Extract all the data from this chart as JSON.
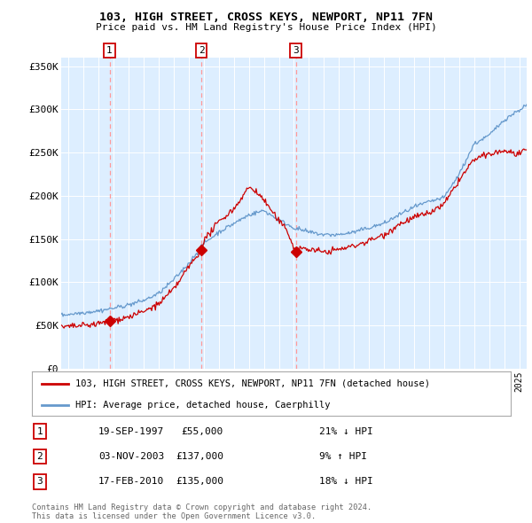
{
  "title1": "103, HIGH STREET, CROSS KEYS, NEWPORT, NP11 7FN",
  "title2": "Price paid vs. HM Land Registry's House Price Index (HPI)",
  "bg_color": "#ddeeff",
  "hpi_color": "#6699cc",
  "price_color": "#cc0000",
  "vline_color": "#ff9999",
  "transactions": [
    {
      "num": 1,
      "date_str": "19-SEP-1997",
      "year": 1997.72,
      "price": 55000,
      "pct": "21%",
      "dir": "↓"
    },
    {
      "num": 2,
      "date_str": "03-NOV-2003",
      "year": 2003.84,
      "price": 137000,
      "pct": "9%",
      "dir": "↑"
    },
    {
      "num": 3,
      "date_str": "17-FEB-2010",
      "year": 2010.12,
      "price": 135000,
      "pct": "18%",
      "dir": "↓"
    }
  ],
  "legend_label_price": "103, HIGH STREET, CROSS KEYS, NEWPORT, NP11 7FN (detached house)",
  "legend_label_hpi": "HPI: Average price, detached house, Caerphilly",
  "footer1": "Contains HM Land Registry data © Crown copyright and database right 2024.",
  "footer2": "This data is licensed under the Open Government Licence v3.0.",
  "ylim": [
    0,
    360000
  ],
  "yticks": [
    0,
    50000,
    100000,
    150000,
    200000,
    250000,
    300000,
    350000
  ],
  "ytick_labels": [
    "£0",
    "£50K",
    "£100K",
    "£150K",
    "£200K",
    "£250K",
    "£300K",
    "£350K"
  ],
  "xlim_start": 1994.5,
  "xlim_end": 2025.5
}
